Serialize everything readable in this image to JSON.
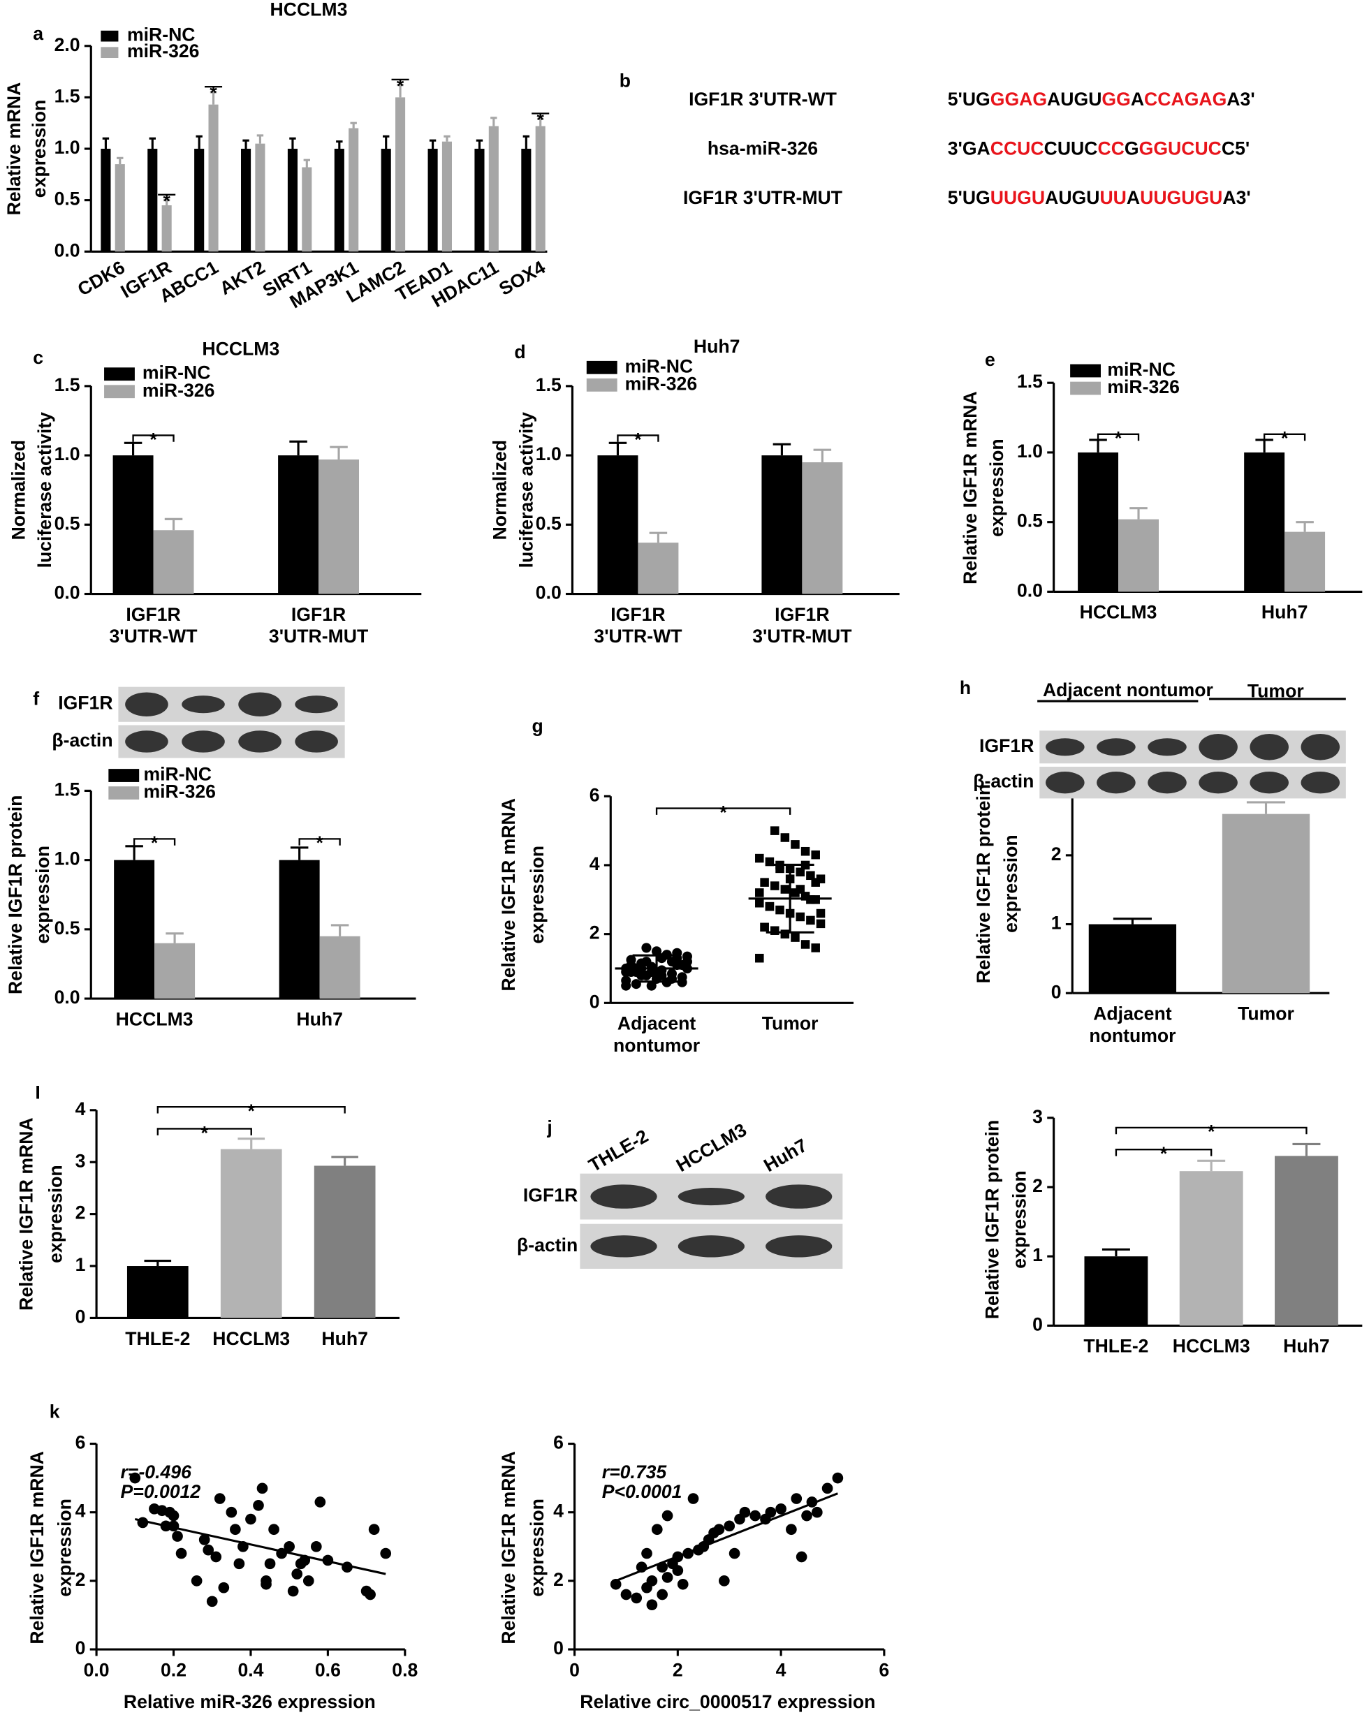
{
  "chart_data": [
    {
      "type": "bar",
      "panel": "a",
      "title": "HCCLM3",
      "ylabel": [
        "Relative  mRNA",
        "expression"
      ],
      "categories": [
        "CDK6",
        "IGF1R",
        "ABCC1",
        "AKT2",
        "SIRT1",
        "MAP3K1",
        "LAMC2",
        "TEAD1",
        "HDAC11",
        "SOX4"
      ],
      "series": [
        {
          "name": "miR-NC",
          "color": "#000000",
          "values": [
            1.0,
            1.0,
            1.0,
            1.0,
            1.0,
            1.0,
            1.0,
            1.0,
            1.0,
            1.0
          ],
          "errors": [
            0.1,
            0.1,
            0.12,
            0.08,
            0.1,
            0.07,
            0.12,
            0.08,
            0.08,
            0.12
          ]
        },
        {
          "name": "miR-326",
          "color": "#a6a6a6",
          "values": [
            0.85,
            0.45,
            1.43,
            1.05,
            0.82,
            1.2,
            1.5,
            1.07,
            1.22,
            1.22
          ],
          "errors": [
            0.06,
            0.05,
            0.12,
            0.08,
            0.07,
            0.05,
            0.12,
            0.05,
            0.08,
            0.07
          ]
        }
      ],
      "ylim": [
        0,
        2
      ],
      "yticks": [
        {
          "value": 0,
          "label": "0.0"
        },
        0.5,
        {
          "value": 1,
          "label": "1.0"
        },
        1.5,
        {
          "value": 2,
          "label": "2.0"
        }
      ],
      "significance": [
        "*",
        "*",
        "*",
        "*"
      ]
    },
    {
      "type": "bar",
      "panel": "c",
      "title": "HCCLM3",
      "ylabel": [
        "Normalized",
        "luciferase activity"
      ],
      "categories": [
        [
          "IGF1R",
          "3'UTR-WT"
        ],
        [
          "IGF1R",
          "3'UTR-MUT"
        ]
      ],
      "series": [
        {
          "name": "miR-NC",
          "color": "#000000",
          "values": [
            1.0,
            1.0
          ],
          "errors": [
            0.09,
            0.1
          ]
        },
        {
          "name": "miR-326",
          "color": "#a6a6a6",
          "values": [
            0.46,
            0.97
          ],
          "errors": [
            0.08,
            0.09
          ]
        }
      ],
      "ylim": [
        0,
        1.5
      ],
      "yticks": [
        {
          "value": 0,
          "label": "0.0"
        },
        0.5,
        {
          "value": 1,
          "label": "1.0"
        },
        1.5
      ],
      "significance": [
        "*"
      ]
    },
    {
      "type": "bar",
      "panel": "d",
      "title": "Huh7",
      "ylabel": [
        "Normalized",
        "luciferase activity"
      ],
      "categories": [
        [
          "IGF1R",
          "3'UTR-WT"
        ],
        [
          "IGF1R",
          "3'UTR-MUT"
        ]
      ],
      "series": [
        {
          "name": "miR-NC",
          "color": "#000000",
          "values": [
            1.0,
            1.0
          ],
          "errors": [
            0.09,
            0.08
          ]
        },
        {
          "name": "miR-326",
          "color": "#a6a6a6",
          "values": [
            0.37,
            0.95
          ],
          "errors": [
            0.07,
            0.09
          ]
        }
      ],
      "ylim": [
        0,
        1.5
      ],
      "yticks": [
        {
          "value": 0,
          "label": "0.0"
        },
        0.5,
        {
          "value": 1,
          "label": "1.0"
        },
        1.5
      ],
      "significance": [
        "*"
      ]
    },
    {
      "type": "bar",
      "panel": "e",
      "ylabel": [
        "Relative IGF1R mRNA",
        "expression"
      ],
      "categories": [
        "HCCLM3",
        "Huh7"
      ],
      "series": [
        {
          "name": "miR-NC",
          "color": "#000000",
          "values": [
            1.0,
            1.0
          ],
          "errors": [
            0.09,
            0.09
          ]
        },
        {
          "name": "miR-326",
          "color": "#a6a6a6",
          "values": [
            0.52,
            0.43
          ],
          "errors": [
            0.08,
            0.07
          ]
        }
      ],
      "ylim": [
        0,
        1.5
      ],
      "yticks": [
        {
          "value": 0,
          "label": "0.0"
        },
        0.5,
        {
          "value": 1,
          "label": "1.0"
        },
        1.5
      ],
      "significance": [
        "*",
        "*"
      ]
    },
    {
      "type": "bar",
      "panel": "f",
      "ylabel": [
        "Relative IGF1R protein",
        "expression"
      ],
      "categories": [
        "HCCLM3",
        "Huh7"
      ],
      "series": [
        {
          "name": "miR-NC",
          "color": "#000000",
          "values": [
            1.0,
            1.0
          ],
          "errors": [
            0.1,
            0.09
          ]
        },
        {
          "name": "miR-326",
          "color": "#a6a6a6",
          "values": [
            0.4,
            0.45
          ],
          "errors": [
            0.07,
            0.08
          ]
        }
      ],
      "ylim": [
        0,
        1.5
      ],
      "yticks": [
        {
          "value": 0,
          "label": "0.0"
        },
        0.5,
        {
          "value": 1,
          "label": "1.0"
        },
        1.5
      ],
      "significance": [
        "*",
        "*"
      ]
    },
    {
      "type": "strip",
      "panel": "g",
      "ylabel": [
        "Relative IGF1R mRNA",
        "expression"
      ],
      "categories": [
        [
          "Adjacent",
          "nontumor"
        ],
        [
          "Tumor"
        ]
      ],
      "markers": [
        "circle",
        "square"
      ],
      "values": [
        [
          0.5,
          0.6,
          0.7,
          0.8,
          0.9,
          1.0,
          1.1,
          1.2,
          1.3,
          1.4,
          1.5,
          1.6,
          0.55,
          0.65,
          0.75,
          0.85,
          0.95,
          1.05,
          1.15,
          1.25,
          1.35,
          1.45,
          0.6,
          0.7,
          0.8,
          0.9,
          1.0,
          1.1,
          1.2,
          1.3,
          0.5,
          0.8,
          0.9,
          1.0,
          1.1,
          1.4,
          0.7,
          1.2,
          1.0,
          0.9
        ],
        [
          1.3,
          1.6,
          1.7,
          1.9,
          2.0,
          2.1,
          2.2,
          2.3,
          2.4,
          2.5,
          2.6,
          2.7,
          2.8,
          2.9,
          3.0,
          3.1,
          3.2,
          3.3,
          3.4,
          3.5,
          3.6,
          3.7,
          3.8,
          3.9,
          4.0,
          4.1,
          4.2,
          4.3,
          4.4,
          4.6,
          4.8,
          5.0,
          2.2,
          2.6,
          3.0,
          3.3,
          3.6,
          3.9,
          2.8,
          3.2,
          3.5,
          4.0
        ]
      ],
      "means": [
        1.0,
        3.03
      ],
      "sds": [
        0.38,
        0.98
      ],
      "ylim": [
        0,
        6
      ],
      "yticks": [
        0,
        2,
        4,
        6
      ],
      "significance": [
        "*"
      ]
    },
    {
      "type": "bar",
      "panel": "h",
      "ylabel": [
        "Relative IGF1R protein",
        "expression"
      ],
      "categories": [
        [
          "Adjacent",
          "nontumor"
        ],
        [
          "Tumor"
        ]
      ],
      "values": [
        1.0,
        2.6
      ],
      "errors": [
        0.08,
        0.17
      ],
      "colors": [
        "#000000",
        "#a6a6a6"
      ],
      "ylim": [
        0,
        3
      ],
      "yticks": [
        0,
        1,
        2
      ],
      "significance": [
        "*"
      ]
    },
    {
      "type": "bar",
      "panel": "I",
      "ylabel": [
        "Relative IGF1R mRNA",
        "expression"
      ],
      "categories": [
        "THLE-2",
        "HCCLM3",
        "Huh7"
      ],
      "values": [
        1.0,
        3.25,
        2.93
      ],
      "errors": [
        0.1,
        0.2,
        0.17
      ],
      "colors": [
        "#000000",
        "#b3b3b3",
        "#808080"
      ],
      "ylim": [
        0,
        4
      ],
      "yticks": [
        0,
        1,
        2,
        3,
        4
      ],
      "significance": [
        "*",
        "*"
      ]
    },
    {
      "type": "bar",
      "ylabel": [
        "Relative IGF1R protein",
        "expression"
      ],
      "categories": [
        "THLE-2",
        "HCCLM3",
        "Huh7"
      ],
      "values": [
        1.0,
        2.23,
        2.45
      ],
      "errors": [
        0.1,
        0.15,
        0.17
      ],
      "colors": [
        "#000000",
        "#b3b3b3",
        "#808080"
      ],
      "ylim": [
        0,
        3
      ],
      "yticks": [
        0,
        1,
        2,
        3
      ],
      "significance": [
        "*",
        "*"
      ]
    },
    {
      "type": "scatter",
      "panel": "k",
      "ylabel": [
        "Relative IGF1R mRNA",
        "expression"
      ],
      "xlabel": "Relative miR-326 expression",
      "annotations": [
        "r=-0.496",
        "P=0.0012"
      ],
      "x": [
        0.1,
        0.12,
        0.15,
        0.17,
        0.18,
        0.19,
        0.2,
        0.21,
        0.22,
        0.2,
        0.26,
        0.28,
        0.29,
        0.3,
        0.31,
        0.32,
        0.33,
        0.35,
        0.36,
        0.37,
        0.38,
        0.4,
        0.42,
        0.43,
        0.44,
        0.44,
        0.45,
        0.46,
        0.48,
        0.5,
        0.51,
        0.52,
        0.53,
        0.54,
        0.55,
        0.57,
        0.58,
        0.6,
        0.65,
        0.7,
        0.71,
        0.72,
        0.75
      ],
      "y": [
        5.0,
        3.7,
        4.1,
        4.05,
        3.6,
        4.0,
        3.9,
        3.3,
        2.8,
        3.6,
        2.0,
        3.2,
        2.9,
        1.4,
        2.7,
        4.4,
        1.8,
        4.0,
        3.5,
        2.5,
        3.0,
        3.8,
        4.2,
        4.7,
        2.0,
        1.9,
        2.5,
        3.5,
        2.8,
        3.0,
        1.7,
        2.2,
        2.5,
        2.6,
        2.0,
        3.0,
        4.3,
        2.6,
        2.4,
        1.7,
        1.6,
        3.5,
        2.8
      ],
      "fit": {
        "x": [
          0.1,
          0.75
        ],
        "y": [
          3.8,
          2.2
        ]
      },
      "xlim": [
        0,
        0.8
      ],
      "xticks": [
        {
          "value": 0,
          "label": "0.0"
        },
        0.2,
        0.4,
        0.6,
        0.8
      ],
      "ylim": [
        0,
        6
      ],
      "yticks": [
        0,
        2,
        4,
        6
      ]
    },
    {
      "type": "scatter",
      "ylabel": [
        "Relative IGF1R mRNA",
        "expression"
      ],
      "xlabel": "Relative circ_0000517 expression",
      "annotations": [
        "r=0.735",
        "P<0.0001"
      ],
      "x": [
        0.8,
        1.0,
        1.3,
        1.4,
        1.4,
        1.5,
        1.5,
        1.6,
        1.7,
        1.7,
        1.8,
        1.8,
        1.9,
        2.0,
        2.1,
        2.2,
        2.3,
        2.4,
        2.5,
        2.6,
        2.7,
        2.8,
        2.9,
        3.0,
        3.1,
        3.2,
        3.3,
        3.5,
        3.7,
        3.8,
        4.0,
        4.2,
        4.3,
        4.4,
        4.5,
        4.6,
        4.7,
        4.9,
        5.1,
        1.2,
        2.0
      ],
      "y": [
        1.9,
        1.6,
        2.4,
        2.8,
        1.8,
        1.3,
        2.0,
        3.5,
        2.4,
        1.6,
        2.1,
        3.9,
        2.5,
        2.7,
        1.9,
        2.8,
        4.4,
        2.9,
        3.0,
        3.2,
        3.4,
        3.5,
        2.0,
        3.6,
        2.8,
        3.8,
        4.0,
        3.9,
        3.8,
        4.0,
        4.1,
        3.5,
        4.4,
        2.7,
        3.9,
        4.3,
        4.0,
        4.7,
        5.0,
        1.5,
        2.3
      ],
      "fit": {
        "x": [
          0.8,
          5.1
        ],
        "y": [
          2.0,
          4.55
        ]
      },
      "xlim": [
        0,
        6
      ],
      "xticks": [
        0,
        2,
        4,
        6
      ],
      "ylim": [
        0,
        6
      ],
      "yticks": [
        0,
        2,
        4,
        6
      ]
    }
  ],
  "panel_b": {
    "panel": "b",
    "highlight_color": "#e8141b",
    "rows": [
      {
        "name": "IGF1R 3'UTR-WT",
        "segments": [
          "5'UG",
          "GGAG",
          "AUGU",
          "GG",
          "A",
          "CCAGAG",
          "A3'"
        ]
      },
      {
        "name": "hsa-miR-326",
        "segments": [
          "3'GA",
          "CCUC",
          "CUUC",
          "CC",
          "G",
          "GGUCUC",
          "C5'"
        ]
      },
      {
        "name": "IGF1R 3'UTR-MUT",
        "segments": [
          "5'UG",
          "UUGU",
          "AUGU",
          "UU",
          "A",
          "UUGUGU",
          "A3'"
        ]
      }
    ]
  },
  "blots": [
    {
      "rows": [
        "IGF1R",
        "β-actin"
      ]
    },
    {
      "groups": [
        "Adjacent nontumor",
        "Tumor"
      ],
      "rows": [
        "IGF1R",
        "β-actin"
      ]
    },
    {
      "panel": "j",
      "lanes": [
        "THLE-2",
        "HCCLM3",
        "Huh7"
      ],
      "rows": [
        "IGF1R",
        "β-actin"
      ]
    }
  ]
}
